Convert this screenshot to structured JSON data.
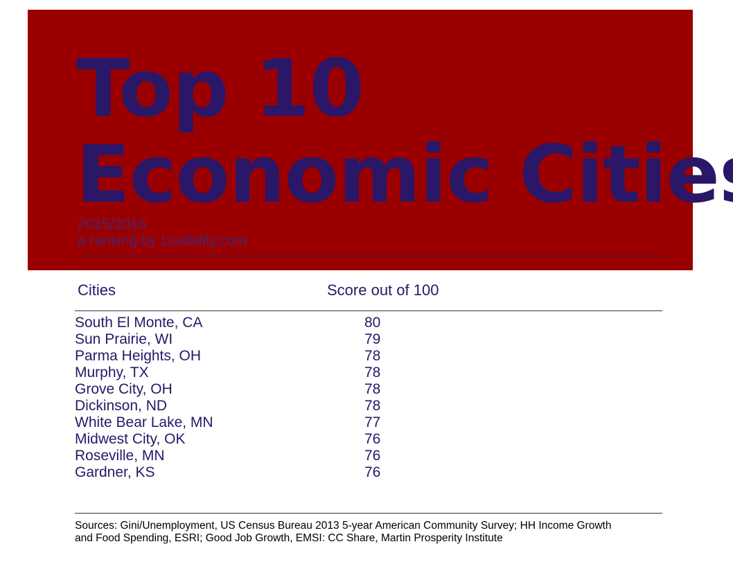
{
  "banner": {
    "title_line1": "Top 10",
    "title_line2": "Economic Cities",
    "subtitle_line1": "2015/2016",
    "subtitle_line2": "a ranking by Livability.com"
  },
  "colors": {
    "banner_bg": "#9b0000",
    "title_text": "#2a1767",
    "table_text": "#2a1767"
  },
  "chart_data": {
    "type": "table",
    "columns": [
      "Cities",
      "Score out of 100"
    ],
    "rows": [
      {
        "city": "South El Monte, CA",
        "score": "80"
      },
      {
        "city": "Sun Prairie, WI",
        "score": "79"
      },
      {
        "city": "Parma Heights, OH",
        "score": "78"
      },
      {
        "city": "Murphy, TX",
        "score": "78"
      },
      {
        "city": "Grove City, OH",
        "score": "78"
      },
      {
        "city": "Dickinson, ND",
        "score": "78"
      },
      {
        "city": "White Bear Lake, MN",
        "score": "77"
      },
      {
        "city": "Midwest City, OK",
        "score": "76"
      },
      {
        "city": "Roseville, MN",
        "score": "76"
      },
      {
        "city": "Gardner, KS",
        "score": "76"
      }
    ]
  },
  "footer": {
    "sources": "Sources: Gini/Unemployment, US Census Bureau 2013 5-year American Community Survey; HH Income Growth and Food Spending, ESRI; Good Job Growth, EMSI: CC Share, Martin Prosperity Institute"
  }
}
